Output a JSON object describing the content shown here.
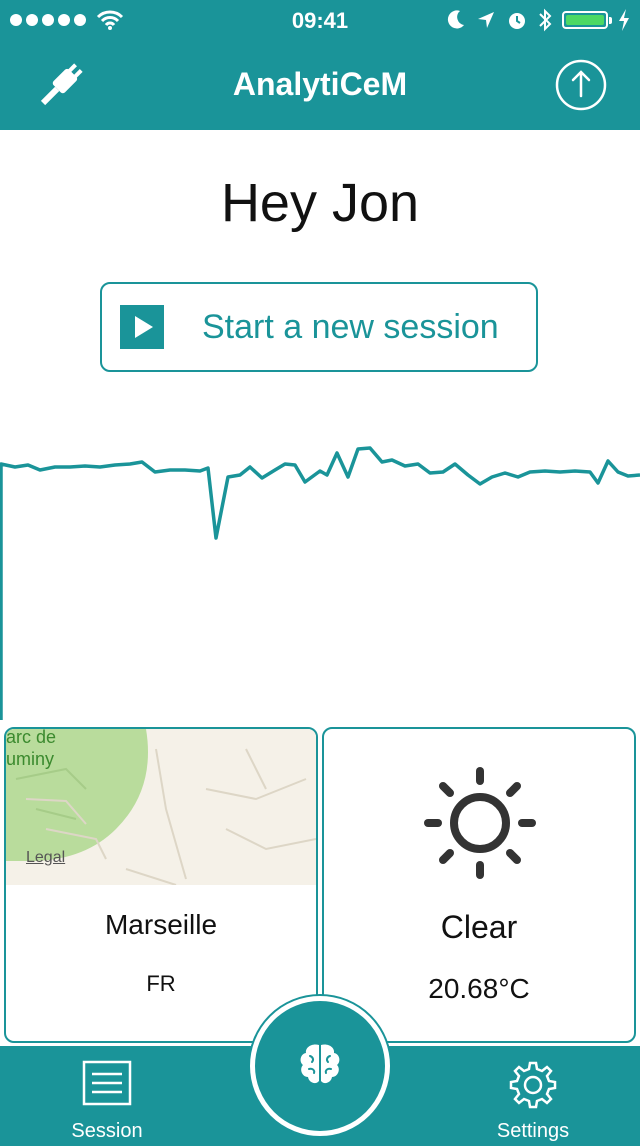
{
  "status_bar": {
    "time": "09:41",
    "signal_dots": 5,
    "battery_level": 0.85
  },
  "nav": {
    "title": "AnalytiCeM",
    "left_icon": "plug-icon",
    "right_icon": "upload-icon"
  },
  "greeting": "Hey Jon",
  "session_button": {
    "label": "Start a new session",
    "icon": "play-icon"
  },
  "map_card": {
    "map_label_1": "arc de",
    "map_label_2": "uminy",
    "legal": "Legal",
    "city": "Marseille",
    "country": "FR"
  },
  "weather_card": {
    "icon": "sun-icon",
    "condition": "Clear",
    "temperature": "20.68°C"
  },
  "tab_bar": {
    "session_label": "Session",
    "settings_label": "Settings",
    "center_icon": "brain-icon"
  },
  "colors": {
    "primary": "#1a9499",
    "battery": "#4cd964",
    "map_green": "#b9dc9c",
    "map_bg": "#f5f1e8"
  }
}
